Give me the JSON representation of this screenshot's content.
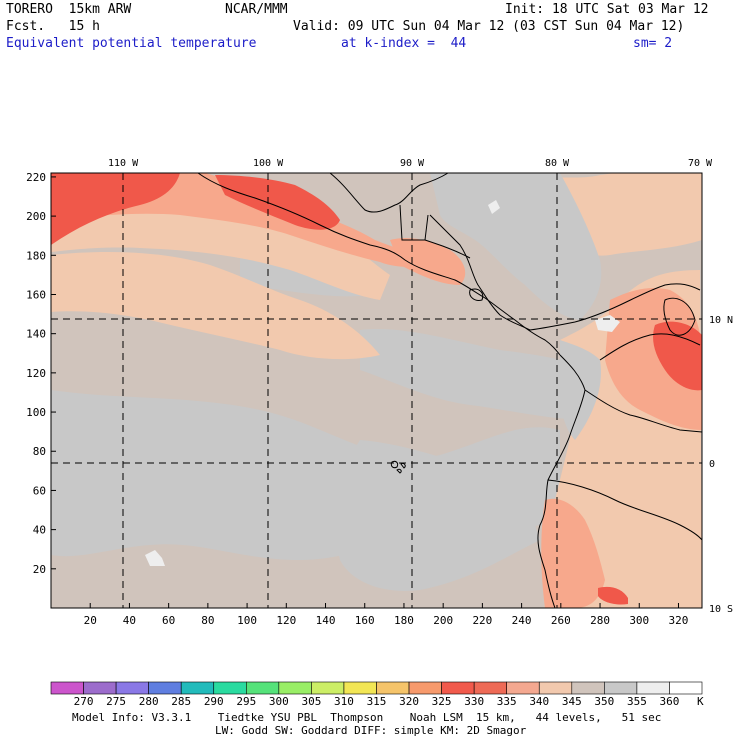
{
  "header": {
    "model": "TORERO  15km ARW",
    "org": "NCAR/MMM",
    "init": "Init: 18 UTC Sat 03 Mar 12",
    "fcst": "Fcst.   15 h",
    "valid": "Valid: 09 UTC Sun 04 Mar 12 (03 CST Sun 04 Mar 12)",
    "field": "Equivalent potential temperature",
    "level": "at k-index =  44",
    "smooth": "sm= 2"
  },
  "map": {
    "lon_labels": [
      "110 W",
      "100 W",
      "90 W",
      "80 W",
      "70 W"
    ],
    "lat_labels": [
      "10 N",
      "0",
      "10 S"
    ],
    "x_ticks": [
      "20",
      "40",
      "60",
      "80",
      "100",
      "120",
      "140",
      "160",
      "180",
      "200",
      "220",
      "240",
      "260",
      "280",
      "300",
      "320"
    ],
    "y_ticks": [
      "20",
      "40",
      "60",
      "80",
      "100",
      "120",
      "140",
      "160",
      "180",
      "200",
      "220"
    ],
    "colors": {
      "ocean_cool": "#c8c8c8",
      "tan": "#d0c4bc",
      "peach": "#f2c9ae",
      "salmon": "#f7a88c",
      "red": "#f0584a",
      "white": "#eeeeee",
      "coast": "#000000",
      "grid": "#000000"
    }
  },
  "colorbar": {
    "labels": [
      "270",
      "275",
      "280",
      "285",
      "290",
      "295",
      "300",
      "305",
      "310",
      "315",
      "320",
      "325",
      "330",
      "335",
      "340",
      "345",
      "350",
      "355",
      "360"
    ],
    "unit": "K",
    "colors": [
      "#cc55cc",
      "#9c6ccc",
      "#8a78e6",
      "#5f7ee0",
      "#22bbbb",
      "#2adba0",
      "#55e27a",
      "#99ee66",
      "#ccee66",
      "#f2e655",
      "#f5c46a",
      "#f79a6c",
      "#f15a4c",
      "#ee6a56",
      "#f4a890",
      "#f2c9ae",
      "#d0c4bc",
      "#c8c8c8",
      "#eeeeee",
      "#ffffff"
    ]
  },
  "footer": {
    "line1": "Model Info: V3.3.1    Tiedtke YSU PBL  Thompson    Noah LSM  15 km,   44 levels,   51 sec",
    "line2": "LW: Godd SW: Goddard DIFF: simple KM: 2D Smagor"
  }
}
